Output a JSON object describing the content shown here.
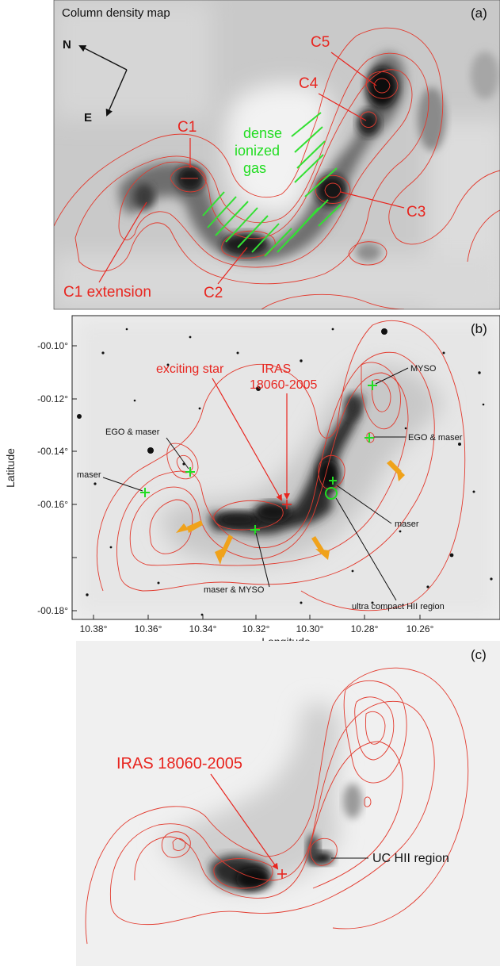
{
  "panel_a": {
    "title": "Column density map",
    "panel_letter": "(a)",
    "compass_n": "N",
    "compass_e": "E",
    "label_c1": "C1",
    "label_c2": "C2",
    "label_c3": "C3",
    "label_c4": "C4",
    "label_c5": "C5",
    "label_c1_extension": "C1 extension",
    "ionized_gas_lines": [
      "dense",
      "ionized",
      "gas"
    ]
  },
  "panel_b": {
    "panel_letter": "(b)",
    "x_axis_label": "Longitude",
    "y_axis_label": "Latitude",
    "x_ticks": [
      "10.38°",
      "10.36°",
      "10.34°",
      "10.32°",
      "10.30°",
      "10.28°",
      "10.26°"
    ],
    "y_ticks": [
      "-00.10°",
      "-00.12°",
      "-00.14°",
      "-00.16°",
      "-00.18°"
    ],
    "label_exciting_star": "exciting star",
    "label_iras_line1": "IRAS",
    "label_iras_line2": "18060-2005",
    "label_myso": "MYSO",
    "label_ego_maser_left": "EGO & maser",
    "label_ego_maser_right": "EGO & maser",
    "label_maser_left": "maser",
    "label_maser_right": "maser",
    "label_maser_myso": "maser &    MYSO",
    "label_uchii": "ultra compact HII region"
  },
  "panel_c": {
    "panel_letter": "(c)",
    "label_iras": "IRAS 18060-2005",
    "label_uchii": "UC HII region"
  }
}
